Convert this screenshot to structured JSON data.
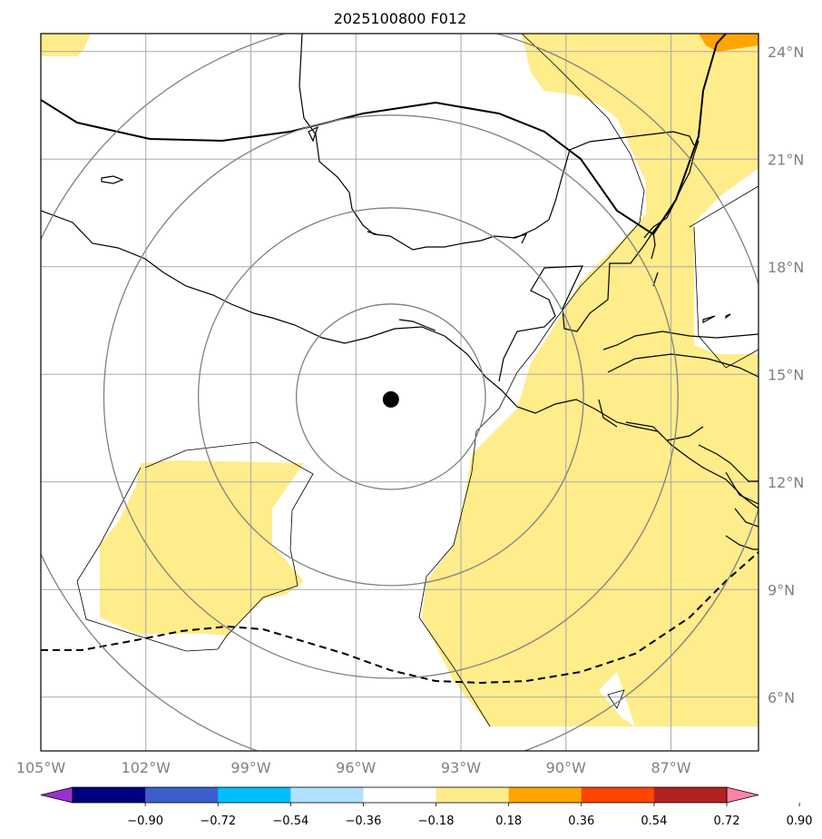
{
  "title": "2025100800 F012",
  "map": {
    "lon_range": [
      -105,
      -84.5
    ],
    "lat_range": [
      4.5,
      24.5
    ],
    "lon_ticks": [
      {
        "value": -105,
        "label": "105°W"
      },
      {
        "value": -102,
        "label": "102°W"
      },
      {
        "value": -99,
        "label": "99°W"
      },
      {
        "value": -96,
        "label": "96°W"
      },
      {
        "value": -93,
        "label": "93°W"
      },
      {
        "value": -90,
        "label": "90°W"
      },
      {
        "value": -87,
        "label": "87°W"
      }
    ],
    "lat_ticks": [
      {
        "value": 6,
        "label": "6°N"
      },
      {
        "value": 9,
        "label": "9°N"
      },
      {
        "value": 12,
        "label": "12°N"
      },
      {
        "value": 15,
        "label": "15°N"
      },
      {
        "value": 18,
        "label": "18°N"
      },
      {
        "value": 21,
        "label": "21°N"
      },
      {
        "value": 24,
        "label": "24°N"
      }
    ],
    "storm_center": {
      "lon": -95,
      "lat": 14.3
    },
    "range_rings_deg": [
      2.7,
      5.5,
      8.2,
      11
    ]
  },
  "colorbar": {
    "ticks": [
      "−0.90",
      "−0.72",
      "−0.54",
      "−0.36",
      "−0.18",
      "0.18",
      "0.36",
      "0.54",
      "0.72",
      "0.90"
    ],
    "colors": [
      "#9932cc",
      "#000080",
      "#3a5fcd",
      "#00bfff",
      "#b0e2ff",
      "#ffffff",
      "#ffec8b",
      "#ffa500",
      "#ff4500",
      "#b22222",
      "#ff82ab"
    ]
  },
  "colors": {
    "fill_low": "#ffec8b",
    "fill_mid": "#ffa500",
    "grid": "#a9a9a9",
    "ring": "#808080"
  }
}
